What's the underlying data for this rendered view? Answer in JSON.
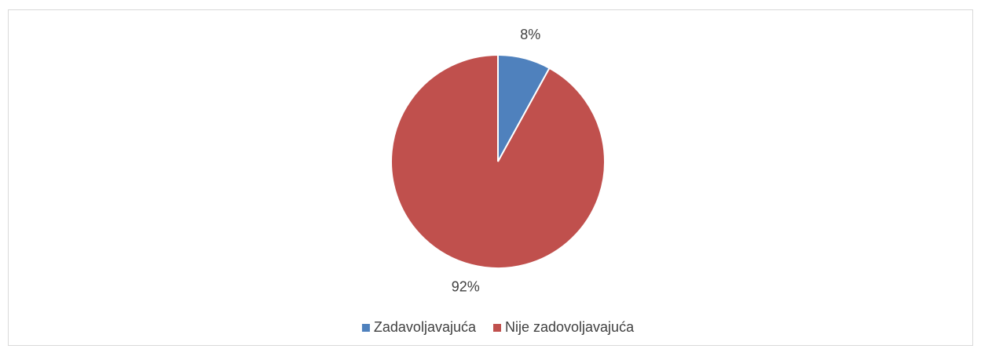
{
  "chart_data": {
    "type": "pie",
    "categories": [
      "Zadavoljavajuća",
      "Nije zadovoljavajuća"
    ],
    "values": [
      8,
      92
    ],
    "value_labels": [
      "8%",
      "92%"
    ],
    "colors": [
      "#4f81bd",
      "#c0504d"
    ],
    "legend": "bottom"
  }
}
